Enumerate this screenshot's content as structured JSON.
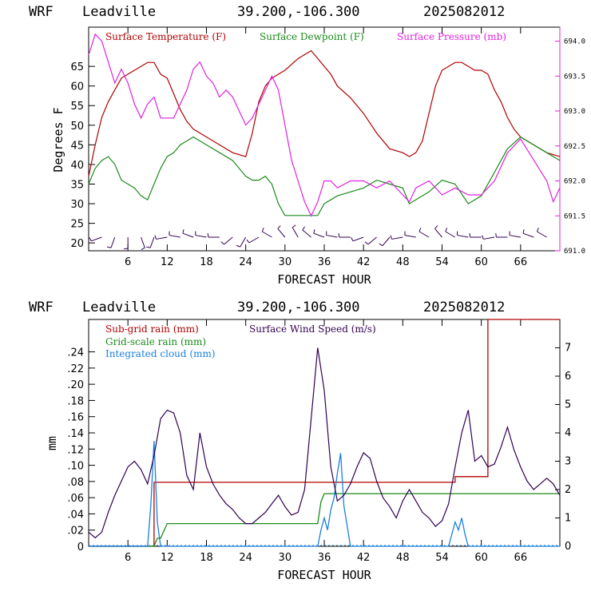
{
  "header": {
    "model": "WRF",
    "location": "Leadville",
    "coords": "39.200,-106.300",
    "run": "2025082012"
  },
  "chart_data": [
    {
      "type": "line",
      "ylabel": "Degrees F",
      "xlabel": "FORECAST HOUR",
      "xticks": [
        6,
        12,
        18,
        24,
        30,
        36,
        42,
        48,
        54,
        60,
        66
      ],
      "xlim": [
        0,
        72
      ],
      "ylim": [
        18,
        75
      ],
      "yticks": [
        20,
        25,
        30,
        35,
        40,
        45,
        50,
        55,
        60,
        65
      ],
      "y2ticks": [
        "691.0",
        "691.5",
        "692.0",
        "692.5",
        "693.0",
        "693.5",
        "694.0"
      ],
      "y2lim": [
        691.0,
        694.2
      ],
      "legend": [
        "Surface Temperature (F)",
        "Surface Dewpoint (F)",
        "Surface Pressure (mb)"
      ],
      "colors": {
        "temp": "#b00000",
        "dew": "#1a8a1a",
        "pres": "#e020e0",
        "barb": "#300050"
      },
      "series": [
        {
          "key": "temp",
          "x": [
            0,
            1,
            2,
            3,
            4,
            5,
            6,
            7,
            8,
            9,
            10,
            11,
            12,
            13,
            14,
            15,
            16,
            18,
            20,
            22,
            24,
            25,
            26,
            27,
            28,
            29,
            30,
            32,
            34,
            35,
            36,
            37,
            38,
            40,
            42,
            44,
            46,
            48,
            49,
            50,
            51,
            52,
            53,
            54,
            55,
            56,
            57,
            58,
            59,
            60,
            61,
            62,
            63,
            64,
            65,
            66,
            68,
            70,
            72
          ],
          "y": [
            37,
            45,
            52,
            56,
            59,
            62,
            63,
            64,
            65,
            66,
            66,
            63,
            62,
            58,
            54,
            51,
            49,
            47,
            45,
            43,
            42,
            48,
            56,
            60,
            62,
            63,
            64,
            67,
            69,
            67,
            65,
            63,
            60,
            57,
            53,
            48,
            44,
            43,
            42,
            43,
            46,
            53,
            60,
            64,
            65,
            66,
            66,
            65,
            64,
            64,
            63,
            59,
            56,
            52,
            49,
            47,
            45,
            43,
            42
          ]
        },
        {
          "key": "dew",
          "x": [
            0,
            1,
            2,
            3,
            4,
            5,
            6,
            7,
            8,
            9,
            10,
            11,
            12,
            13,
            14,
            15,
            16,
            18,
            20,
            22,
            24,
            25,
            26,
            27,
            28,
            29,
            30,
            32,
            34,
            35,
            36,
            38,
            40,
            42,
            44,
            46,
            48,
            49,
            50,
            52,
            54,
            56,
            58,
            60,
            62,
            64,
            66,
            68,
            70,
            72
          ],
          "y": [
            35,
            39,
            41,
            42,
            40,
            36,
            35,
            34,
            32,
            31,
            35,
            39,
            42,
            43,
            45,
            46,
            47,
            45,
            43,
            41,
            37,
            36,
            36,
            37,
            35,
            30,
            27,
            27,
            27,
            27,
            30,
            32,
            33,
            34,
            36,
            35,
            34,
            30,
            31,
            33,
            36,
            35,
            30,
            32,
            38,
            44,
            47,
            45,
            43,
            41
          ]
        },
        {
          "key": "pres",
          "x": [
            0,
            1,
            2,
            3,
            4,
            5,
            6,
            7,
            8,
            9,
            10,
            11,
            12,
            13,
            14,
            15,
            16,
            17,
            18,
            19,
            20,
            21,
            22,
            23,
            24,
            25,
            26,
            27,
            28,
            29,
            30,
            31,
            32,
            33,
            34,
            35,
            36,
            37,
            38,
            40,
            42,
            44,
            46,
            48,
            49,
            50,
            52,
            54,
            56,
            58,
            60,
            62,
            64,
            66,
            68,
            70,
            71,
            72
          ],
          "y": [
            693.8,
            694.1,
            694.0,
            693.7,
            693.4,
            693.6,
            693.4,
            693.1,
            692.9,
            693.1,
            693.2,
            692.9,
            692.9,
            692.9,
            693.1,
            693.3,
            693.6,
            693.7,
            693.5,
            693.4,
            693.2,
            693.3,
            693.2,
            693.0,
            692.8,
            692.9,
            693.1,
            693.3,
            693.5,
            693.3,
            692.8,
            692.3,
            692.0,
            691.7,
            691.5,
            691.7,
            692.0,
            692.0,
            691.9,
            692.0,
            692.0,
            691.9,
            692.0,
            691.8,
            691.7,
            691.9,
            692.0,
            691.8,
            691.9,
            691.8,
            691.8,
            692.0,
            692.4,
            692.6,
            692.3,
            692.0,
            691.7,
            691.9
          ]
        }
      ],
      "wind_barbs_x": [
        2,
        4,
        6,
        8,
        10,
        12,
        14,
        16,
        18,
        20,
        22,
        24,
        26,
        28,
        30,
        32,
        34,
        36,
        38,
        40,
        42,
        44,
        46,
        48,
        50,
        52,
        54,
        56,
        58,
        60,
        62,
        64,
        66,
        68,
        70
      ],
      "wind_barbs_dir": [
        250,
        200,
        180,
        160,
        200,
        260,
        280,
        290,
        280,
        270,
        230,
        210,
        240,
        300,
        320,
        330,
        310,
        290,
        280,
        270,
        250,
        230,
        220,
        260,
        280,
        300,
        320,
        300,
        280,
        270,
        260,
        270,
        280,
        290,
        300
      ]
    },
    {
      "type": "line",
      "ylabel": "mm",
      "xlabel": "FORECAST HOUR",
      "xticks": [
        6,
        12,
        18,
        24,
        30,
        36,
        42,
        48,
        54,
        60,
        66
      ],
      "xlim": [
        0,
        72
      ],
      "ylim": [
        0,
        0.28
      ],
      "yticks": [
        ".24",
        ".22",
        ".20",
        ".18",
        ".16",
        ".14",
        ".12",
        ".10",
        ".08",
        ".06",
        ".04",
        ".02",
        "0"
      ],
      "ytick_values": [
        0.24,
        0.22,
        0.2,
        0.18,
        0.16,
        0.14,
        0.12,
        0.1,
        0.08,
        0.06,
        0.04,
        0.02,
        0
      ],
      "y2ticks": [
        0,
        1,
        2,
        3,
        4,
        5,
        6,
        7
      ],
      "y2lim": [
        0,
        8
      ],
      "legend": [
        "Sub-grid rain (mm)",
        "Grid-scale rain (mm)",
        "Integrated cloud (mm)",
        "Surface Wind Speed (m/s)"
      ],
      "colors": {
        "subgrid": "#b00000",
        "grid": "#1a8a1a",
        "cloud": "#1a80e0",
        "wind": "#300050"
      },
      "series": [
        {
          "key": "subgrid",
          "x": [
            0,
            10,
            10,
            56,
            56,
            61,
            61,
            72
          ],
          "y": [
            0,
            0,
            0.079,
            0.079,
            0.086,
            0.086,
            0.288,
            0.288
          ]
        },
        {
          "key": "grid",
          "x": [
            0,
            10,
            10.5,
            11,
            12,
            35,
            35.5,
            36,
            72
          ],
          "y": [
            0,
            0,
            0.01,
            0.01,
            0.028,
            0.028,
            0.055,
            0.065,
            0.065
          ]
        },
        {
          "key": "cloud",
          "x": [
            0,
            9,
            9.5,
            10,
            10.5,
            11,
            35,
            35.5,
            36,
            36.5,
            37,
            37.5,
            38,
            38.5,
            39,
            40,
            55,
            55.5,
            56,
            56.5,
            57,
            57.5,
            58,
            72
          ],
          "y": [
            0,
            0,
            0.05,
            0.13,
            0.03,
            0,
            0,
            0.02,
            0.035,
            0.02,
            0.045,
            0.06,
            0.09,
            0.115,
            0.05,
            0,
            0,
            0.015,
            0.03,
            0.02,
            0.035,
            0.015,
            0,
            0
          ]
        },
        {
          "key": "wind",
          "x": [
            0,
            1,
            2,
            3,
            4,
            5,
            6,
            7,
            8,
            9,
            10,
            11,
            12,
            13,
            14,
            15,
            16,
            17,
            18,
            19,
            20,
            21,
            22,
            23,
            24,
            25,
            26,
            27,
            28,
            29,
            30,
            31,
            32,
            33,
            34,
            35,
            36,
            37,
            38,
            39,
            40,
            41,
            42,
            43,
            44,
            45,
            46,
            47,
            48,
            49,
            50,
            51,
            52,
            53,
            54,
            55,
            56,
            57,
            58,
            59,
            60,
            61,
            62,
            63,
            64,
            65,
            66,
            67,
            68,
            69,
            70,
            71,
            72
          ],
          "y": [
            0.5,
            0.3,
            0.5,
            1.2,
            1.8,
            2.3,
            2.8,
            3.0,
            2.7,
            2.2,
            3.2,
            4.5,
            4.8,
            4.7,
            4.0,
            2.5,
            2.0,
            4.0,
            2.8,
            2.2,
            1.8,
            1.5,
            1.3,
            1.0,
            0.8,
            0.8,
            1.0,
            1.2,
            1.5,
            1.8,
            1.4,
            1.1,
            1.2,
            2.0,
            4.5,
            7.0,
            5.5,
            2.8,
            1.6,
            1.8,
            2.2,
            2.8,
            3.3,
            3.1,
            2.3,
            1.7,
            1.4,
            1.0,
            1.6,
            2.0,
            1.6,
            1.2,
            1.0,
            0.7,
            0.9,
            1.5,
            2.8,
            4.0,
            4.8,
            3.0,
            3.2,
            2.8,
            2.9,
            3.5,
            4.2,
            3.4,
            2.8,
            2.3,
            2.0,
            2.2,
            2.4,
            2.2,
            1.8
          ]
        }
      ]
    }
  ]
}
